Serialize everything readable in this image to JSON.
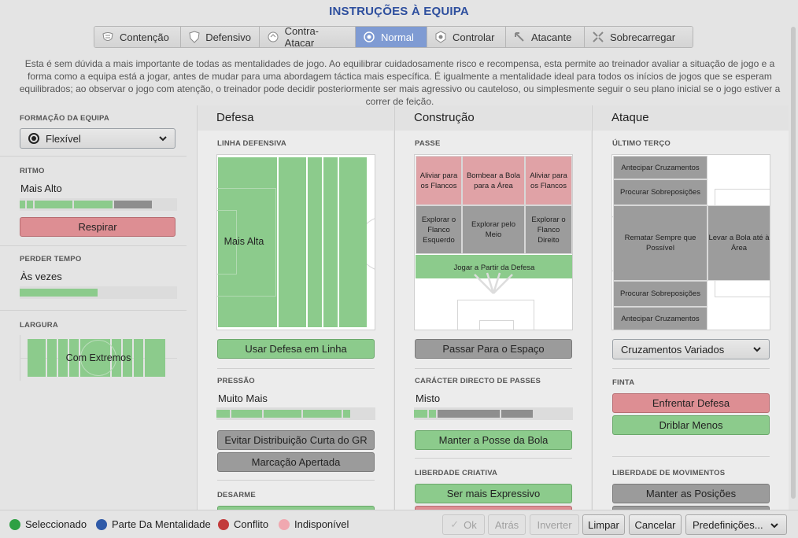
{
  "title": "INSTRUÇÕES À EQUIPA",
  "tabs": [
    {
      "label": "Contenção",
      "icon": "contencao-icon",
      "active": false
    },
    {
      "label": "Defensivo",
      "icon": "shield-icon",
      "active": false
    },
    {
      "label": "Contra-Atacar",
      "icon": "counter-icon",
      "active": false
    },
    {
      "label": "Normal",
      "icon": "balance-icon",
      "active": true
    },
    {
      "label": "Controlar",
      "icon": "control-icon",
      "active": false
    },
    {
      "label": "Atacante",
      "icon": "attack-icon",
      "active": false
    },
    {
      "label": "Sobrecarregar",
      "icon": "overload-icon",
      "active": false
    }
  ],
  "description": "Esta é sem dúvida a mais importante de todas as mentalidades de jogo.  Ao equilibrar cuidadosamente risco e recompensa, esta permite ao treinador avaliar a situação de jogo e a forma como a equipa está a jogar, antes de mudar para uma abordagem táctica mais específica. É igualmente a mentalidade ideal para todos os inícios de jogos que se esperam equilibrados; ao observar o jogo com atenção, o treinador pode decidir posteriormente ser mais agressivo ou cauteloso, ou simplesmente seguir o seu plano inicial se o jogo estiver a correr de feição.",
  "left": {
    "formation_label": "FORMAÇÃO DA EQUIPA",
    "formation_value": "Flexível",
    "ritmo_label": "RITMO",
    "ritmo_value": "Mais Alto",
    "ritmo_level": 0.85,
    "ritmo_button": "Respirar",
    "perder_label": "PERDER TEMPO",
    "perder_value": "Às vezes",
    "perder_level": 0.5,
    "largura_label": "LARGURA",
    "largura_value": "Com Extremos"
  },
  "defesa": {
    "title": "Defesa",
    "linha_label": "LINHA DEFENSIVA",
    "linha_value": "Mais Alta",
    "linha_button": "Usar Defesa em Linha",
    "pressao_label": "PRESSÃO",
    "pressao_value": "Muito Mais",
    "pressao_level": 0.85,
    "btn_gr": "Evitar Distribuição Curta do GR",
    "btn_marcacao": "Marcação Apertada",
    "desarme_label": "DESARME"
  },
  "construcao": {
    "title": "Construção",
    "passe_label": "PASSE",
    "zones": {
      "aliviar_esq": "Aliviar para os Flancos",
      "bombear": "Bombear a Bola para a Área",
      "aliviar_dir": "Aliviar para os Flancos",
      "explorar_esq": "Explorar o Flanco Esquerdo",
      "explorar_meio": "Explorar pelo Meio",
      "explorar_dir": "Explorar o Flanco Direito",
      "jogar_defesa": "Jogar a Partir da Defesa"
    },
    "passe_button": "Passar Para o Espaço",
    "directo_label": "CARÁCTER DIRECTO DE PASSES",
    "directo_value": "Misto",
    "directo_level": 0.5,
    "posse_button": "Manter a Posse da Bola",
    "liberdade_label": "LIBERDADE CRIATIVA",
    "expressivo_button": "Ser mais Expressivo"
  },
  "ataque": {
    "title": "Ataque",
    "ultimo_label": "ÚLTIMO TERÇO",
    "zones": {
      "antecipar1": "Antecipar Cruzamentos",
      "procurar1": "Procurar Sobreposições",
      "rematar": "Rematar Sempre que Possível",
      "levar": "Levar a Bola até à Área",
      "procurar2": "Procurar Sobreposições",
      "antecipar2": "Antecipar Cruzamentos"
    },
    "cruzamentos_value": "Cruzamentos Variados",
    "finta_label": "FINTA",
    "enfrentar_button": "Enfrentar Defesa",
    "driblar_button": "Driblar Menos",
    "movimentos_label": "LIBERDADE DE MOVIMENTOS",
    "posicoes_button": "Manter as Posições"
  },
  "legend": [
    {
      "label": "Seleccionado",
      "color": "#2ea043"
    },
    {
      "label": "Parte Da Mentalidade",
      "color": "#2f5aa8"
    },
    {
      "label": "Conflito",
      "color": "#c23b3b"
    },
    {
      "label": "Indisponível",
      "color": "#f0a8b0"
    }
  ],
  "footer": {
    "ok": "Ok",
    "atras": "Atrás",
    "inverter": "Inverter",
    "limpar": "Limpar",
    "cancelar": "Cancelar",
    "predefinicoes": "Predefinições..."
  },
  "colors": {
    "accent": "#7f9bd3",
    "selected": "#8ccb8c",
    "unavailable": "#dd8e93",
    "neutral": "#9b9b9b"
  }
}
